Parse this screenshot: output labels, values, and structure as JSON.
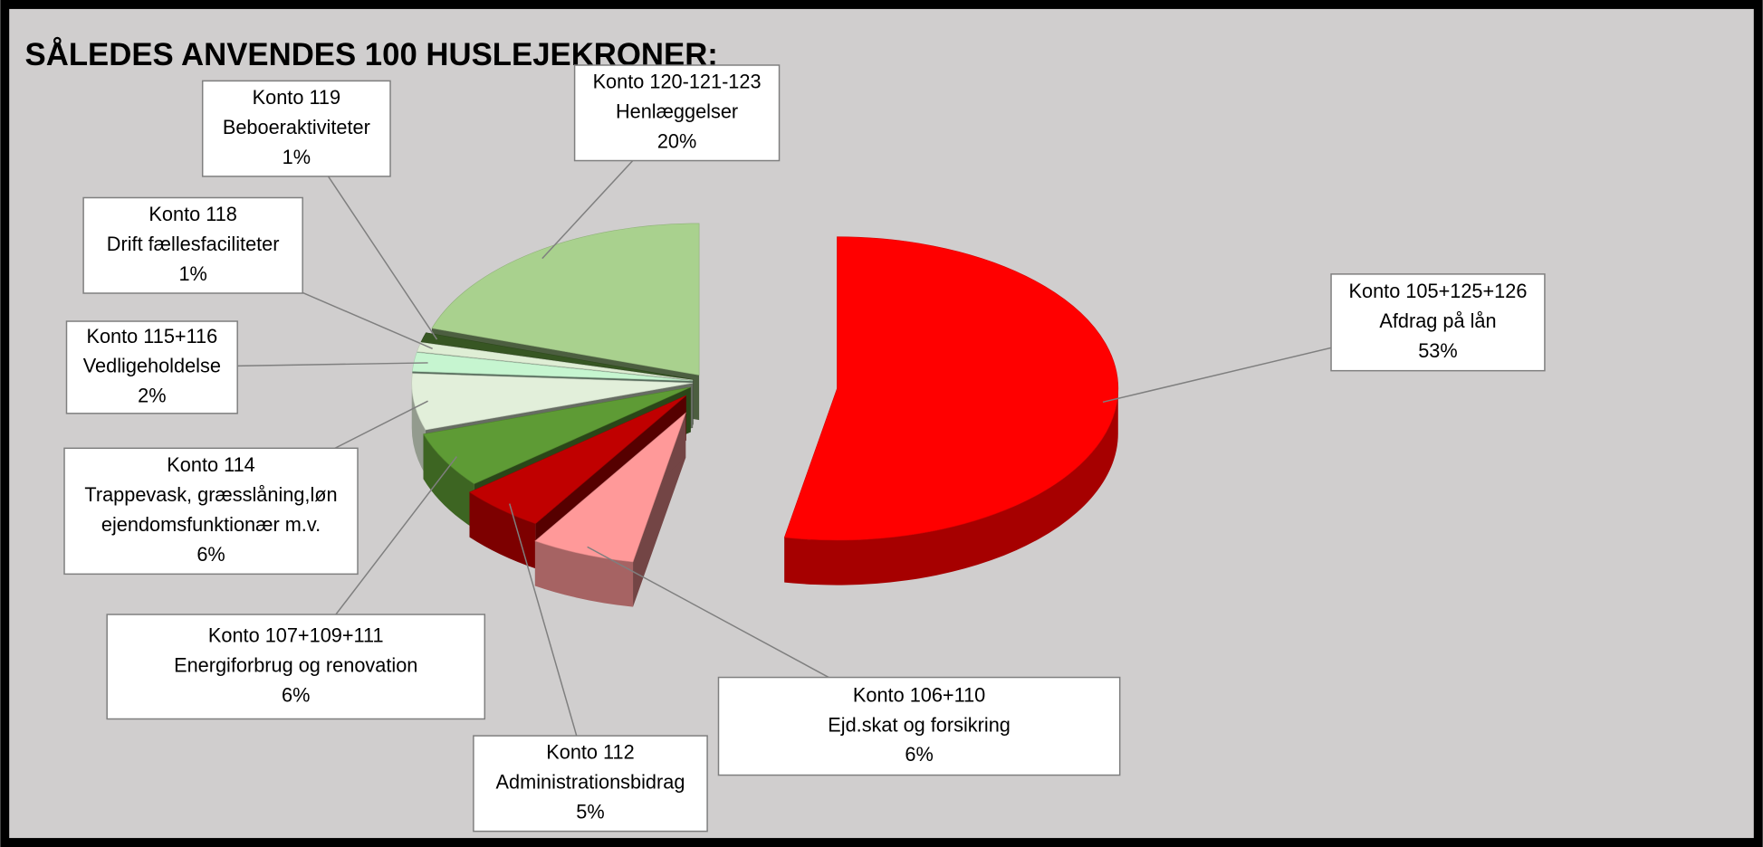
{
  "chart_data": {
    "type": "pie3d",
    "title": "SÅLEDES ANVENDES 100 HUSLEJEKRONER:",
    "categories": [
      [
        "Konto 105+125+126",
        "Afdrag på lån"
      ],
      [
        "Konto 106+110",
        "Ejd.skat og forsikring"
      ],
      [
        "Konto 112",
        "Administrationsbidrag"
      ],
      [
        "Konto 107+109+111",
        "Energiforbrug og renovation"
      ],
      [
        "Konto 114",
        "Trappevask, græsslåning,løn",
        "ejendomsfunktionær m.v."
      ],
      [
        "Konto 115+116",
        "Vedligeholdelse"
      ],
      [
        "Konto 118",
        "Drift fællesfaciliteter"
      ],
      [
        "Konto 119",
        "Beboeraktiviteter"
      ],
      [
        "Konto 120-121-123",
        "Henlæggelser"
      ]
    ],
    "values": [
      53,
      6,
      5,
      6,
      6,
      2,
      1,
      1,
      20
    ],
    "value_labels": [
      "53%",
      "6%",
      "5%",
      "6%",
      "6%",
      "2%",
      "1%",
      "1%",
      "20%"
    ],
    "colors": [
      "#ff0000",
      "#ff9999",
      "#c00000",
      "#5e9b35",
      "#e2efda",
      "#c6f5d0",
      "#dfeed5",
      "#375623",
      "#a9d18e"
    ]
  }
}
